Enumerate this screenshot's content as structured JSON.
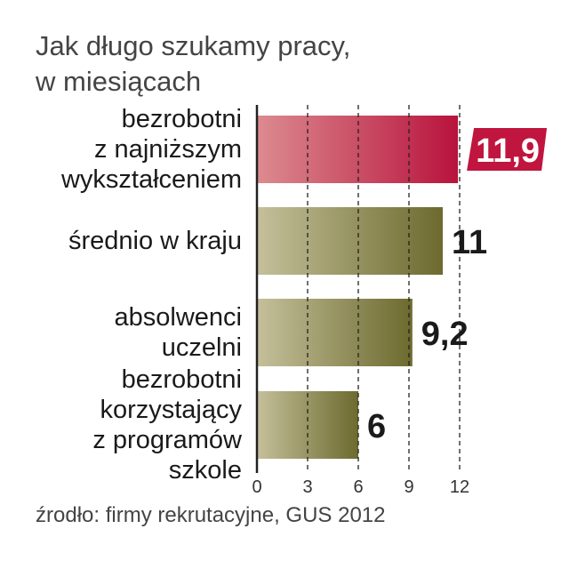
{
  "title_lines": [
    "Jak długo szukamy pracy,",
    "w miesiącach"
  ],
  "source": "źrodło: firmy rekrutacyjne, GUS 2012",
  "chart_data": {
    "type": "bar",
    "orientation": "horizontal",
    "title": "Jak długo szukamy pracy, w miesiącach",
    "categories": [
      "bezrobotni z najniższym wykształceniem",
      "średnio w kraju",
      "absolwenci uczelni",
      "bezrobotni korzystający z programów szkole"
    ],
    "category_lines": [
      [
        "bezrobotni",
        "z najniższym",
        "wykształceniem"
      ],
      [
        "średnio w kraju"
      ],
      [
        "absolwenci",
        "uczelni"
      ],
      [
        "bezrobotni",
        "korzystający",
        "z programów",
        "szkole"
      ]
    ],
    "values": [
      11.9,
      11,
      9.2,
      6
    ],
    "value_labels": [
      "11,9",
      "11",
      "9,2",
      "6"
    ],
    "xlim": [
      0,
      12
    ],
    "xticks": [
      0,
      3,
      6,
      9,
      12
    ],
    "grid": "vertical dashed",
    "highlight_index": 0,
    "colors": {
      "highlight_light": "#dc8b90",
      "highlight_dark": "#b8133c",
      "bar_light": "#c5c09b",
      "bar_dark": "#6c6a2e",
      "label_badge": "#c0153e",
      "axis": "#222222"
    }
  }
}
